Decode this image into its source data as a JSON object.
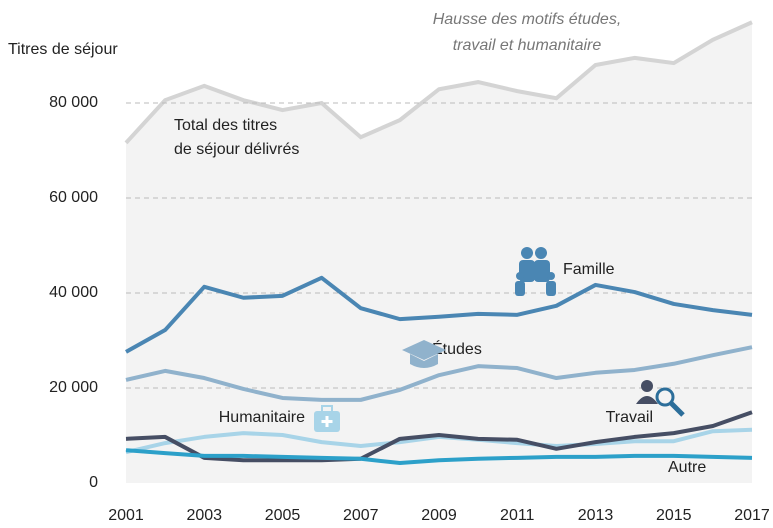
{
  "chart_data": {
    "type": "line",
    "ylabel": "Titres de séjour",
    "x": [
      2001,
      2002,
      2003,
      2004,
      2005,
      2006,
      2007,
      2008,
      2009,
      2010,
      2011,
      2012,
      2013,
      2014,
      2015,
      2016,
      2017
    ],
    "xlim": [
      2001,
      2017
    ],
    "xticks": [
      2001,
      2003,
      2005,
      2007,
      2009,
      2011,
      2013,
      2015,
      2017
    ],
    "ylim": [
      0,
      100000
    ],
    "yticks": [
      {
        "value": 0,
        "label": "0"
      },
      {
        "value": 20000,
        "label": "20 000"
      },
      {
        "value": 40000,
        "label": "40 000"
      },
      {
        "value": 60000,
        "label": "60 000"
      },
      {
        "value": 80000,
        "label": "80 000"
      }
    ],
    "grid": true,
    "total": {
      "label": [
        "Total des titres",
        "de séjour délivrés"
      ],
      "color": "#d4d4d4",
      "values": [
        71600,
        80600,
        83600,
        80600,
        78500,
        80000,
        72800,
        76400,
        82900,
        84400,
        82500,
        81000,
        88000,
        89500,
        88400,
        93300,
        97000
      ]
    },
    "annotation": [
      "Hausse des motifs études,",
      "travail et humanitaire"
    ],
    "series": [
      {
        "name": "Famille",
        "color": "#4a86b3",
        "values": [
          27600,
          32200,
          41300,
          39000,
          39400,
          43200,
          36800,
          34500,
          35000,
          35600,
          35400,
          37300,
          41700,
          40200,
          37700,
          36400,
          35400
        ]
      },
      {
        "name": "Études",
        "color": "#90b2cc",
        "values": [
          21700,
          23600,
          22100,
          19800,
          17900,
          17500,
          17500,
          19600,
          22700,
          24600,
          24200,
          22100,
          23200,
          23800,
          25100,
          26900,
          28600
        ]
      },
      {
        "name": "Humanitaire",
        "color": "#a8d4e8",
        "values": [
          6500,
          8400,
          9700,
          10500,
          10100,
          8600,
          7800,
          8600,
          9700,
          9100,
          8400,
          7800,
          8200,
          8800,
          8800,
          10900,
          11200
        ]
      },
      {
        "name": "Travail",
        "color": "#464e64",
        "values": [
          9300,
          9700,
          5300,
          4800,
          4800,
          4800,
          5100,
          9300,
          10100,
          9300,
          9100,
          7200,
          8600,
          9700,
          10500,
          12000,
          14900
        ]
      },
      {
        "name": "Autre",
        "color": "#2ca0c9",
        "values": [
          6900,
          6300,
          5700,
          5700,
          5500,
          5300,
          5100,
          4200,
          4800,
          5100,
          5300,
          5500,
          5500,
          5700,
          5700,
          5500,
          5300
        ]
      }
    ]
  }
}
